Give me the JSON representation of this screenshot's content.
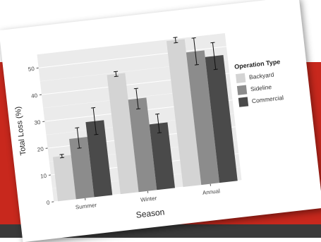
{
  "chart_data": {
    "type": "bar",
    "title": "",
    "xlabel": "Season",
    "ylabel": "Total Loss (%)",
    "ylim": [
      0,
      55
    ],
    "yticks": [
      0,
      10,
      20,
      30,
      40,
      50
    ],
    "categories": [
      "Summer",
      "Winter",
      "Annual"
    ],
    "legend_title": "Operation Type",
    "legend_position": "right",
    "grid": true,
    "series": [
      {
        "name": "Backyard",
        "color": "#d4d4d4",
        "values": [
          16.5,
          44.5,
          54.5
        ],
        "errors": [
          0.6,
          0.9,
          1.0
        ]
      },
      {
        "name": "Sideline",
        "color": "#8c8c8c",
        "values": [
          22.5,
          34.5,
          49.5
        ],
        "errors": [
          3.8,
          3.8,
          5.0
        ]
      },
      {
        "name": "Commercial",
        "color": "#4a4a4a",
        "values": [
          28.0,
          24.5,
          47.0
        ],
        "errors": [
          5.0,
          3.5,
          5.0
        ]
      }
    ]
  }
}
